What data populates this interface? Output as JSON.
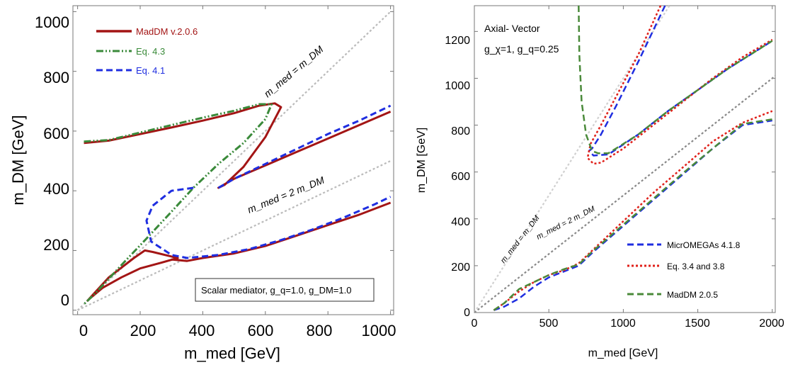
{
  "chart_data": [
    {
      "type": "line",
      "xlabel": "m_med [GeV]",
      "ylabel": "m_DM [GeV]",
      "xlim": [
        -15,
        1010
      ],
      "ylim": [
        -15,
        1020
      ],
      "xticks": [
        "0",
        "200",
        "400",
        "600",
        "800",
        "1000"
      ],
      "yticks": [
        "0",
        "200",
        "400",
        "600",
        "800",
        "1000"
      ],
      "x_tick_values": [
        0,
        200,
        400,
        600,
        800,
        1000
      ],
      "y_tick_values": [
        0,
        200,
        400,
        600,
        800,
        1000
      ],
      "grid": false,
      "legend_position": "top-left",
      "legend": [
        "MadDM v.2.0.6",
        "Eq. 4.3",
        "Eq. 4.1"
      ],
      "annotations": [
        "m_med = m_DM",
        "m_med = 2 m_DM",
        "Scalar mediator, g_q=1.0, g_DM=1.0"
      ],
      "reference_lines": [
        {
          "label": "m_med = m_DM",
          "x": [
            0,
            1000
          ],
          "y": [
            0,
            1000
          ]
        },
        {
          "label": "m_med = 2 m_DM",
          "x": [
            0,
            1000
          ],
          "y": [
            0,
            500
          ]
        }
      ],
      "series": [
        {
          "name": "MadDM v.2.0.6",
          "color": "#a31515",
          "style": "solid",
          "x": [
            20,
            100,
            200,
            300,
            400,
            500,
            580,
            630,
            650,
            600,
            530,
            470,
            450,
            500,
            600,
            700,
            800,
            900,
            1000
          ],
          "y": [
            560,
            568,
            590,
            612,
            635,
            660,
            685,
            693,
            680,
            580,
            480,
            420,
            410,
            440,
            485,
            530,
            575,
            620,
            665
          ]
        },
        {
          "name": "MadDM v.2.0.6",
          "color": "#a31515",
          "style": "solid",
          "x": [
            30,
            100,
            180,
            215,
            240,
            300,
            320,
            270,
            200,
            140,
            80,
            40,
            30
          ],
          "y": [
            30,
            110,
            175,
            200,
            195,
            180,
            175,
            160,
            140,
            110,
            75,
            40,
            30
          ]
        },
        {
          "name": "MadDM v.2.0.6",
          "color": "#a31515",
          "style": "solid",
          "x": [
            300,
            350,
            400,
            500,
            600,
            700,
            800,
            900,
            1000
          ],
          "y": [
            170,
            165,
            175,
            190,
            215,
            250,
            285,
            320,
            360
          ]
        },
        {
          "name": "Eq. 4.3",
          "color": "#3a8a3a",
          "style": "dashdot",
          "x": [
            20,
            100,
            200,
            300,
            400,
            500,
            580,
            620,
            600,
            530,
            450,
            370,
            300,
            220,
            130,
            60,
            20
          ],
          "y": [
            565,
            570,
            595,
            620,
            645,
            668,
            690,
            690,
            640,
            560,
            490,
            410,
            330,
            240,
            140,
            60,
            20
          ]
        },
        {
          "name": "Eq. 4.1",
          "color": "#1f2ee0",
          "style": "dashed",
          "x": [
            450,
            500,
            600,
            700,
            800,
            900,
            1000
          ],
          "y": [
            410,
            440,
            490,
            540,
            590,
            635,
            685
          ]
        },
        {
          "name": "Eq. 4.1",
          "color": "#1f2ee0",
          "style": "dashed",
          "x": [
            370,
            300,
            240,
            220,
            235,
            300,
            350,
            450,
            550,
            650,
            750,
            850,
            950,
            1000
          ],
          "y": [
            410,
            400,
            350,
            300,
            230,
            185,
            175,
            185,
            205,
            235,
            270,
            310,
            355,
            380
          ]
        }
      ]
    },
    {
      "type": "line",
      "title": "Axial- Vector",
      "subtitle": "g_χ=1, g_q=0.25",
      "xlabel": "m_med [GeV]",
      "ylabel": "m_DM [GeV]",
      "xlim": [
        0,
        2020
      ],
      "ylim": [
        0,
        1310
      ],
      "xticks": [
        "0",
        "500",
        "1000",
        "1500",
        "2000"
      ],
      "yticks": [
        "0",
        "200",
        "400",
        "600",
        "800",
        "1000",
        "1200"
      ],
      "x_tick_values": [
        0,
        500,
        1000,
        1500,
        2000
      ],
      "y_tick_values": [
        0,
        200,
        400,
        600,
        800,
        1000,
        1200
      ],
      "grid": false,
      "legend_position": "bottom-right",
      "legend": [
        "MicrOMEGAs 4.1.8",
        "Eq. 3.4 and 3.8",
        "MadDM 2.0.5"
      ],
      "annotations": [
        "m_med = m_DM",
        "m_med = 2 m_DM"
      ],
      "reference_lines": [
        {
          "label": "m_med = m_DM",
          "x": [
            0,
            1310
          ],
          "y": [
            0,
            1310
          ]
        },
        {
          "label": "m_med = 2 m_DM",
          "x": [
            0,
            2020
          ],
          "y": [
            0,
            1010
          ]
        }
      ],
      "series": [
        {
          "name": "MicrOMEGAs 4.1.8",
          "color": "#1f2ee0",
          "style": "dashed",
          "x": [
            1280,
            1100,
            950,
            850,
            790,
            770,
            800,
            900,
            1100,
            1300,
            1500,
            1700,
            1900,
            2000
          ],
          "y": [
            1310,
            1070,
            880,
            760,
            700,
            690,
            670,
            675,
            760,
            860,
            950,
            1040,
            1120,
            1160
          ]
        },
        {
          "name": "MicrOMEGAs 4.1.8",
          "color": "#1f2ee0",
          "style": "dashed",
          "x": [
            130,
            200,
            300,
            400,
            500,
            600,
            700,
            800,
            1000,
            1200,
            1400,
            1600,
            1800,
            2000
          ],
          "y": [
            10,
            25,
            60,
            110,
            150,
            175,
            200,
            260,
            370,
            480,
            590,
            700,
            800,
            820
          ]
        },
        {
          "name": "Eq. 3.4 and 3.8",
          "color": "#e0201a",
          "style": "dotted",
          "x": [
            1250,
            1100,
            950,
            850,
            780,
            760,
            800,
            850,
            1000,
            1200,
            1400,
            1600,
            1800,
            2000
          ],
          "y": [
            1310,
            1100,
            920,
            800,
            720,
            660,
            635,
            640,
            700,
            800,
            900,
            1000,
            1090,
            1165
          ]
        },
        {
          "name": "Eq. 3.4 and 3.8",
          "color": "#e0201a",
          "style": "dotted",
          "x": [
            130,
            200,
            300,
            400,
            500,
            600,
            700,
            800,
            1000,
            1200,
            1400,
            1600,
            1800,
            2000
          ],
          "y": [
            10,
            40,
            90,
            130,
            160,
            180,
            210,
            270,
            390,
            510,
            620,
            730,
            810,
            860
          ]
        },
        {
          "name": "MadDM 2.0.5",
          "color": "#4a8a3a",
          "style": "dashed",
          "x": [
            700,
            705,
            720,
            750,
            790,
            830,
            900,
            1100,
            1300,
            1500,
            1700,
            1900,
            2000
          ],
          "y": [
            1310,
            1100,
            900,
            760,
            690,
            680,
            680,
            760,
            860,
            950,
            1040,
            1120,
            1160
          ]
        },
        {
          "name": "MadDM 2.0.5",
          "color": "#4a8a3a",
          "style": "dashed",
          "x": [
            130,
            200,
            300,
            400,
            500,
            600,
            700,
            800,
            1000,
            1200,
            1400,
            1600,
            1800,
            2000
          ],
          "y": [
            10,
            40,
            100,
            130,
            160,
            185,
            205,
            265,
            375,
            485,
            595,
            700,
            805,
            825
          ]
        }
      ]
    }
  ]
}
